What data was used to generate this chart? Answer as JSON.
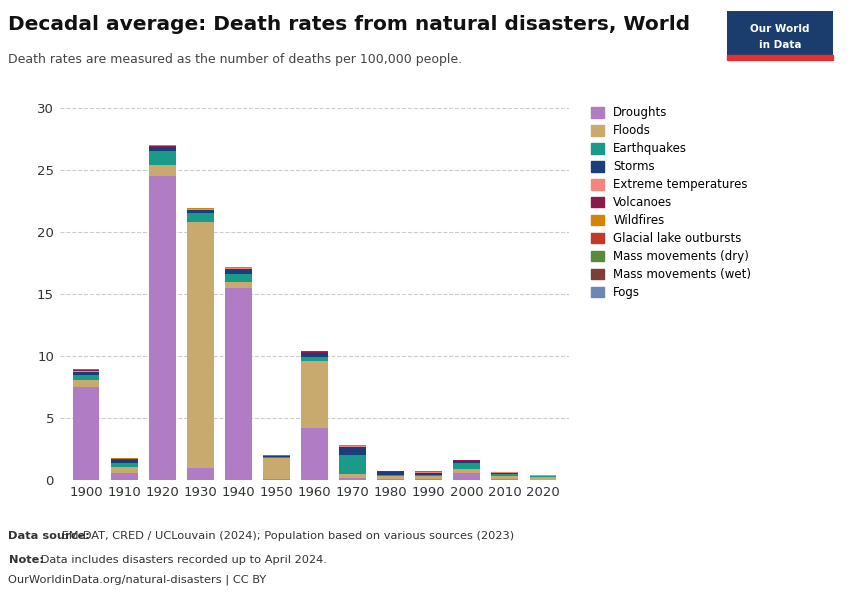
{
  "decades": [
    1900,
    1910,
    1920,
    1930,
    1940,
    1950,
    1960,
    1970,
    1980,
    1990,
    2000,
    2010,
    2020
  ],
  "categories": [
    "Droughts",
    "Floods",
    "Earthquakes",
    "Storms",
    "Extreme temperatures",
    "Volcanoes",
    "Wildfires",
    "Glacial lake outbursts",
    "Mass movements (dry)",
    "Mass movements (wet)",
    "Fogs"
  ],
  "colors": [
    "#b07dc4",
    "#c8a96e",
    "#1a9b8a",
    "#1a3d7c",
    "#f4857a",
    "#8b1a4a",
    "#d4820a",
    "#c0392b",
    "#5a8a3c",
    "#7b3f35",
    "#6a87b8"
  ],
  "data": {
    "Droughts": [
      7.5,
      0.6,
      24.5,
      1.0,
      15.5,
      0.05,
      4.2,
      0.15,
      0.05,
      0.05,
      0.55,
      0.05,
      0.02
    ],
    "Floods": [
      0.55,
      0.45,
      0.9,
      19.8,
      0.5,
      1.75,
      5.4,
      0.35,
      0.25,
      0.25,
      0.35,
      0.3,
      0.22
    ],
    "Earthquakes": [
      0.45,
      0.35,
      1.1,
      0.75,
      0.6,
      0.06,
      0.3,
      1.55,
      0.12,
      0.1,
      0.5,
      0.12,
      0.05
    ],
    "Storms": [
      0.25,
      0.2,
      0.35,
      0.25,
      0.45,
      0.05,
      0.35,
      0.65,
      0.22,
      0.2,
      0.12,
      0.1,
      0.05
    ],
    "Extreme temperatures": [
      0.05,
      0.04,
      0.04,
      0.04,
      0.04,
      0.02,
      0.03,
      0.04,
      0.04,
      0.04,
      0.04,
      0.04,
      0.03
    ],
    "Volcanoes": [
      0.08,
      0.08,
      0.07,
      0.05,
      0.04,
      0.02,
      0.03,
      0.04,
      0.02,
      0.02,
      0.02,
      0.01,
      0.01
    ],
    "Wildfires": [
      0.02,
      0.02,
      0.02,
      0.02,
      0.02,
      0.01,
      0.02,
      0.02,
      0.01,
      0.01,
      0.01,
      0.01,
      0.01
    ],
    "Glacial lake outbursts": [
      0.01,
      0.01,
      0.01,
      0.01,
      0.01,
      0.01,
      0.01,
      0.01,
      0.01,
      0.01,
      0.01,
      0.01,
      0.01
    ],
    "Mass movements (dry)": [
      0.02,
      0.02,
      0.02,
      0.02,
      0.02,
      0.01,
      0.02,
      0.02,
      0.01,
      0.01,
      0.01,
      0.01,
      0.01
    ],
    "Mass movements (wet)": [
      0.02,
      0.02,
      0.02,
      0.02,
      0.02,
      0.01,
      0.02,
      0.02,
      0.01,
      0.01,
      0.01,
      0.01,
      0.01
    ],
    "Fogs": [
      0.01,
      0.01,
      0.01,
      0.01,
      0.01,
      0.01,
      0.01,
      0.01,
      0.01,
      0.01,
      0.01,
      0.01,
      0.01
    ]
  },
  "title": "Decadal average: Death rates from natural disasters, World",
  "subtitle": "Death rates are measured as the number of deaths per 100,000 people.",
  "ylim": [
    0,
    30
  ],
  "yticks": [
    0,
    5,
    10,
    15,
    20,
    25,
    30
  ],
  "footnote_source_bold": "Data source:",
  "footnote_source_rest": " EM-DAT, CRED / UCLouvain (2024); Population based on various sources (2023)",
  "footnote_note_bold": "Note:",
  "footnote_note_rest": " Data includes disasters recorded up to April 2024.",
  "footnote_url": "OurWorldinData.org/natural-disasters | CC BY",
  "background_color": "#ffffff",
  "owid_box_color": "#1a3d6e",
  "owid_red": "#e63030"
}
